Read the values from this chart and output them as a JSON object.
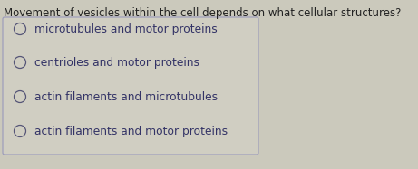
{
  "question": "Movement of vesicles within the cell depends on what cellular structures?",
  "options": [
    "microtubules and motor proteins",
    "centrioles and motor proteins",
    "actin filaments and microtubules",
    "actin filaments and motor proteins"
  ],
  "bg_color": "#cbc9bc",
  "box_bg_color": "#d0ceC2",
  "box_edge_color": "#9999bb",
  "question_color": "#222222",
  "option_color": "#333366",
  "question_fontsize": 8.5,
  "option_fontsize": 8.8,
  "circle_color": "#555577",
  "fig_bg_color": "#cbc9bc"
}
